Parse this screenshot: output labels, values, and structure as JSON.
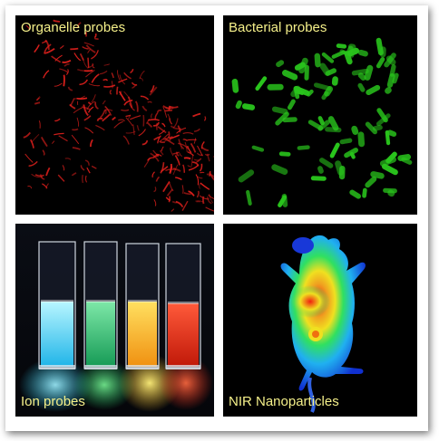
{
  "panels": [
    {
      "label": "Organelle probes",
      "color": "#e0201c"
    },
    {
      "label": "Bacterial probes",
      "color": "#29c41c"
    },
    {
      "label": "Ion probes",
      "cuvette_colors": [
        "#1fc8f0",
        "#22d06a",
        "#f0b020",
        "#e82818"
      ]
    },
    {
      "label": "NIR Nanoparticles",
      "heatmap_colors": [
        "#1030d0",
        "#20b0f0",
        "#30e060",
        "#f0e020",
        "#f02010"
      ]
    }
  ]
}
